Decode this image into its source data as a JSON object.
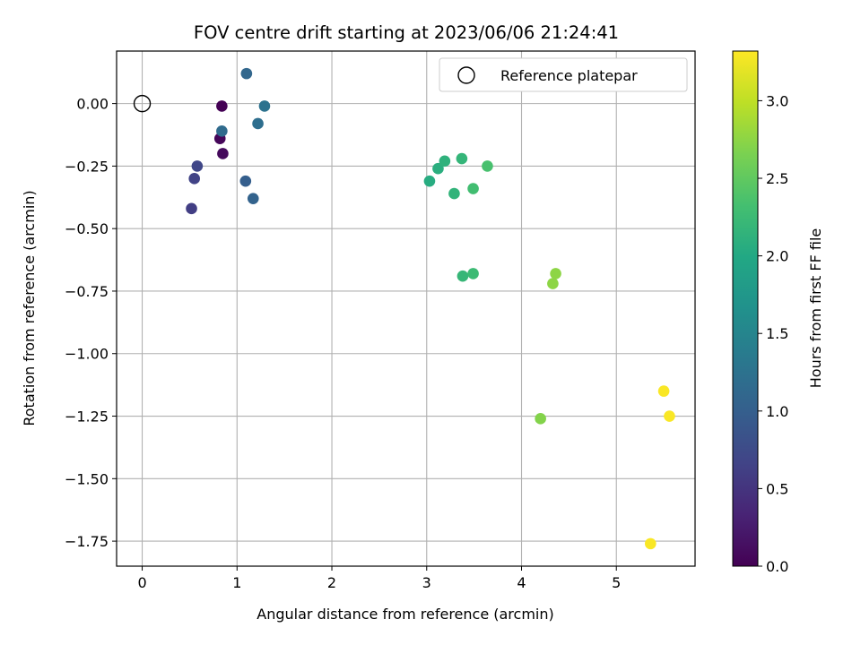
{
  "chart_data": {
    "type": "scatter",
    "title": "FOV centre drift starting at 2023/06/06 21:24:41",
    "xlabel": "Angular distance from reference (arcmin)",
    "ylabel": "Rotation from reference (arcmin)",
    "xlim": [
      -0.27,
      5.83
    ],
    "ylim": [
      -1.85,
      0.21
    ],
    "xticks": [
      0,
      1,
      2,
      3,
      4,
      5
    ],
    "xtick_labels": [
      "0",
      "1",
      "2",
      "3",
      "4",
      "5"
    ],
    "yticks": [
      0.0,
      -0.25,
      -0.5,
      -0.75,
      -1.0,
      -1.25,
      -1.5,
      -1.75
    ],
    "ytick_labels": [
      "0.00",
      "−0.25",
      "−0.50",
      "−0.75",
      "−1.00",
      "−1.25",
      "−1.50",
      "−1.75"
    ],
    "grid": true,
    "legend": {
      "position": "upper right",
      "entries": [
        "Reference platepar"
      ]
    },
    "reference_point": {
      "x": 0.0,
      "y": 0.0,
      "marker": "open-circle",
      "color": "#000000"
    },
    "colorbar": {
      "label": "Hours from first FF file",
      "range": [
        0.0,
        3.32
      ],
      "colormap": "viridis",
      "ticks": [
        0.0,
        0.5,
        1.0,
        1.5,
        2.0,
        2.5,
        3.0
      ],
      "tick_labels": [
        "0.0",
        "0.5",
        "1.0",
        "1.5",
        "2.0",
        "2.5",
        "3.0"
      ]
    },
    "series": [
      {
        "points": [
          {
            "x": 0.84,
            "y": -0.01,
            "c": 0.0
          },
          {
            "x": 0.82,
            "y": -0.14,
            "c": 0.05
          },
          {
            "x": 0.85,
            "y": -0.2,
            "c": 0.08
          },
          {
            "x": 0.52,
            "y": -0.42,
            "c": 0.6
          },
          {
            "x": 0.55,
            "y": -0.3,
            "c": 0.65
          },
          {
            "x": 0.58,
            "y": -0.25,
            "c": 0.7
          },
          {
            "x": 1.09,
            "y": -0.31,
            "c": 1.0
          },
          {
            "x": 1.17,
            "y": -0.38,
            "c": 1.05
          },
          {
            "x": 1.1,
            "y": 0.12,
            "c": 1.1
          },
          {
            "x": 0.84,
            "y": -0.11,
            "c": 1.15
          },
          {
            "x": 1.22,
            "y": -0.08,
            "c": 1.2
          },
          {
            "x": 1.29,
            "y": -0.01,
            "c": 1.25
          },
          {
            "x": 3.03,
            "y": -0.31,
            "c": 2.05
          },
          {
            "x": 3.12,
            "y": -0.26,
            "c": 2.08
          },
          {
            "x": 3.19,
            "y": -0.23,
            "c": 2.12
          },
          {
            "x": 3.29,
            "y": -0.36,
            "c": 2.15
          },
          {
            "x": 3.37,
            "y": -0.22,
            "c": 2.18
          },
          {
            "x": 3.49,
            "y": -0.34,
            "c": 2.3
          },
          {
            "x": 3.64,
            "y": -0.25,
            "c": 2.35
          },
          {
            "x": 3.38,
            "y": -0.69,
            "c": 2.2
          },
          {
            "x": 3.49,
            "y": -0.68,
            "c": 2.25
          },
          {
            "x": 4.36,
            "y": -0.68,
            "c": 2.75
          },
          {
            "x": 4.33,
            "y": -0.72,
            "c": 2.75
          },
          {
            "x": 4.2,
            "y": -1.26,
            "c": 2.7
          },
          {
            "x": 5.5,
            "y": -1.15,
            "c": 3.3
          },
          {
            "x": 5.56,
            "y": -1.25,
            "c": 3.3
          },
          {
            "x": 5.36,
            "y": -1.76,
            "c": 3.3
          }
        ]
      }
    ]
  }
}
